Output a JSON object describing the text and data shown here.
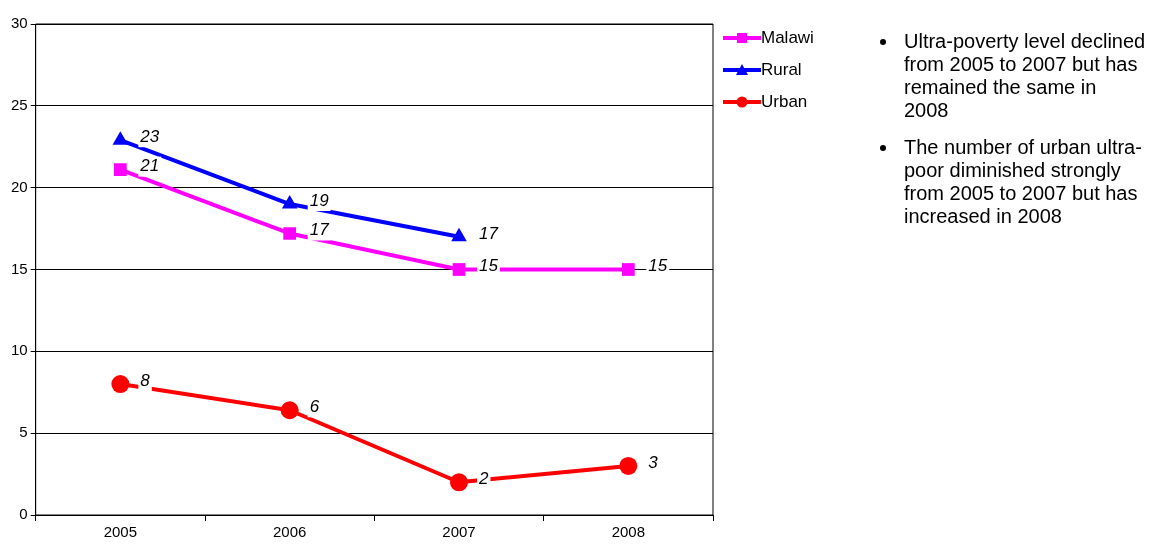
{
  "chart_data": {
    "type": "line",
    "categories": [
      "2005",
      "2006",
      "2007",
      "2008"
    ],
    "series": [
      {
        "name": "Malawi",
        "color": "#ff00ff",
        "marker": "square",
        "values": [
          21.1,
          17.2,
          15,
          15
        ],
        "value_labels": [
          "21",
          "17",
          "15",
          "15"
        ]
      },
      {
        "name": "Rural",
        "color": "#0000ff",
        "marker": "triangle",
        "values": [
          22.9,
          19,
          17,
          null
        ],
        "value_labels": [
          "23",
          "19",
          "17",
          null
        ]
      },
      {
        "name": "Urban",
        "color": "#ff0000",
        "marker": "circle",
        "values": [
          8,
          6.4,
          2,
          3
        ],
        "value_labels": [
          "8",
          "6",
          "2",
          "3"
        ]
      }
    ],
    "ylim": [
      0,
      30
    ],
    "yticks": [
      0,
      5,
      10,
      15,
      20,
      25,
      30
    ],
    "grid": "y",
    "legend": "top right",
    "line_style": "solid",
    "annotations": [
      "Ultra-poverty level declined from 2005 to 2007 but has remained the same in 2008",
      "The number of urban ultra-poor diminished strongly from 2005 to 2007 but has increased in 2008"
    ]
  }
}
